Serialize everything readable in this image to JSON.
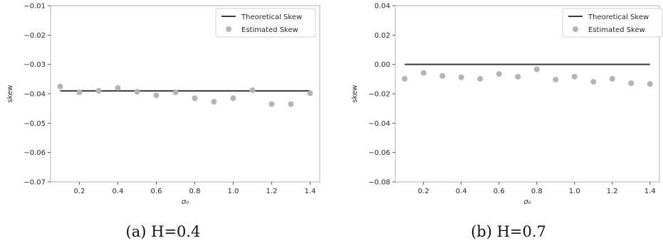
{
  "colors": {
    "theory": "#3a3a3a",
    "points": "#b4b4b4",
    "frame": "#b0b0b0"
  },
  "chart_data": [
    {
      "type": "scatter",
      "caption": "(a) H=0.4",
      "xlabel": "σ₀",
      "ylabel": "skew",
      "xlim": [
        0.05,
        1.45
      ],
      "ylim": [
        -0.07,
        -0.01
      ],
      "xticks": [
        0.2,
        0.4,
        0.6,
        0.8,
        1.0,
        1.2,
        1.4
      ],
      "xticklabels": [
        "0.2",
        "0.4",
        "0.6",
        "0.8",
        "1.0",
        "1.2",
        "1.4"
      ],
      "yticks": [
        -0.01,
        -0.02,
        -0.03,
        -0.04,
        -0.05,
        -0.06,
        -0.07
      ],
      "yticklabels": [
        "−0.01",
        "−0.02",
        "−0.03",
        "−0.04",
        "−0.05",
        "−0.06",
        "−0.07"
      ],
      "legend_position": "top-right",
      "series": [
        {
          "name": "Theoretical Skew",
          "kind": "line",
          "x": [
            0.1,
            1.4
          ],
          "y": [
            -0.039,
            -0.039
          ]
        },
        {
          "name": "Estimated Skew",
          "kind": "scatter",
          "x": [
            0.1,
            0.2,
            0.3,
            0.4,
            0.5,
            0.6,
            0.7,
            0.8,
            0.9,
            1.0,
            1.1,
            1.2,
            1.3,
            1.4
          ],
          "y": [
            -0.0375,
            -0.0395,
            -0.039,
            -0.038,
            -0.0393,
            -0.0405,
            -0.0395,
            -0.0415,
            -0.0427,
            -0.0415,
            -0.0388,
            -0.0435,
            -0.0435,
            -0.0398
          ]
        }
      ]
    },
    {
      "type": "scatter",
      "caption": "(b) H=0.7",
      "xlabel": "σ₀",
      "ylabel": "skew",
      "xlim": [
        0.05,
        1.45
      ],
      "ylim": [
        -0.08,
        0.04
      ],
      "xticks": [
        0.2,
        0.4,
        0.6,
        0.8,
        1.0,
        1.2,
        1.4
      ],
      "xticklabels": [
        "0.2",
        "0.4",
        "0.6",
        "0.8",
        "1.0",
        "1.2",
        "1.4"
      ],
      "yticks": [
        0.04,
        0.02,
        0.0,
        -0.02,
        -0.04,
        -0.06,
        -0.08
      ],
      "yticklabels": [
        "0.04",
        "0.02",
        "0.00",
        "−0.02",
        "−0.04",
        "−0.06",
        "−0.08"
      ],
      "legend_position": "top-right",
      "series": [
        {
          "name": "Theoretical Skew",
          "kind": "line",
          "x": [
            0.1,
            1.4
          ],
          "y": [
            0.0,
            0.0
          ]
        },
        {
          "name": "Estimated Skew",
          "kind": "scatter",
          "x": [
            0.1,
            0.2,
            0.3,
            0.4,
            0.5,
            0.6,
            0.7,
            0.8,
            0.9,
            1.0,
            1.1,
            1.2,
            1.3,
            1.4
          ],
          "y": [
            -0.0098,
            -0.0058,
            -0.0078,
            -0.0088,
            -0.0098,
            -0.0065,
            -0.0083,
            -0.0033,
            -0.0103,
            -0.0083,
            -0.0118,
            -0.0098,
            -0.0128,
            -0.0133
          ]
        }
      ]
    }
  ]
}
